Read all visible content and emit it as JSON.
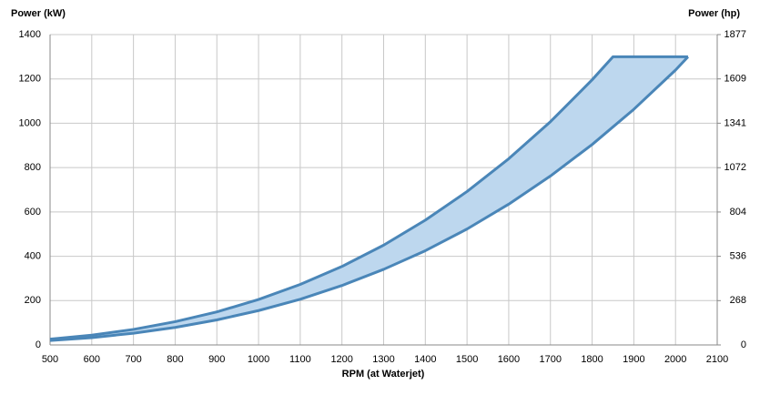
{
  "chart_data": {
    "type": "band",
    "ylabel": "Power (kW)",
    "y2label": "Power (hp)",
    "xlabel": "RPM (at Waterjet)",
    "xlim": [
      500,
      2100
    ],
    "xticks": [
      500,
      600,
      700,
      800,
      900,
      1000,
      1100,
      1200,
      1300,
      1400,
      1500,
      1600,
      1700,
      1800,
      1900,
      2000,
      2100
    ],
    "ylim": [
      0,
      1400
    ],
    "yticks": [
      0,
      200,
      400,
      600,
      800,
      1000,
      1200,
      1400
    ],
    "y2lim": [
      0,
      1877
    ],
    "y2ticks": [
      0,
      268,
      536,
      804,
      1072,
      1341,
      1609,
      1877
    ],
    "grid": true,
    "fill": "#bdd7ee",
    "series": [
      {
        "color": "#4a86b8",
        "x": [
          500,
          600,
          700,
          800,
          900,
          1000,
          1100,
          1200,
          1300,
          1400,
          1500,
          1600,
          1700,
          1800,
          1850,
          2030
        ],
        "values": [
          26,
          44,
          70,
          105,
          149,
          205,
          273,
          354,
          450,
          563,
          692,
          840,
          1007,
          1196,
          1300,
          1300
        ]
      },
      {
        "color": "#4a86b8",
        "x": [
          500,
          600,
          700,
          800,
          900,
          1000,
          1100,
          1200,
          1300,
          1400,
          1500,
          1600,
          1700,
          1800,
          1900,
          2000,
          2030
        ],
        "values": [
          20,
          33,
          53,
          79,
          113,
          155,
          206,
          268,
          341,
          425,
          523,
          635,
          762,
          904,
          1063,
          1240,
          1300
        ]
      }
    ]
  }
}
